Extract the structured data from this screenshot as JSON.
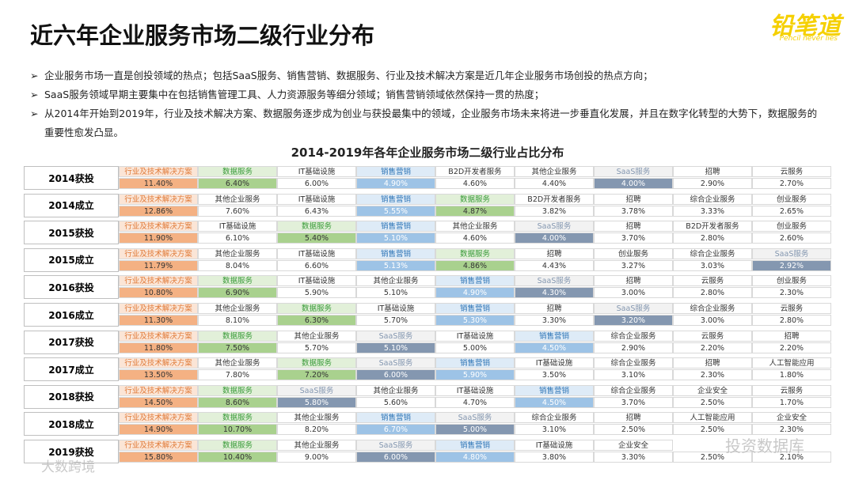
{
  "header": {
    "title": "近六年企业服务市场二级行业分布",
    "logo": "铅笔道",
    "logo_sub": "Pencil never lies"
  },
  "bullets": [
    "企业服务市场一直是创投领域的热点；包括SaaS服务、销售营销、数据服务、行业及技术解决方案是近几年企业服务市场创投的热点方向；",
    "SaaS服务领域早期主要集中在包括销售管理工具、人力资源服务等细分领域；销售营销领域依然保持一贯的热度；",
    "从2014年开始到2019年，行业及技术解决方案、数据服务逐步成为创业与获投最集中的领域，企业服务市场未来将进一步垂直化发展，并且在数字化转型的大势下，数据服务的重要性愈发凸显。"
  ],
  "table": {
    "title": "2014-2019年各年企业服务市场二级行业占比分布",
    "styles": {
      "行业及技术解决方案": {
        "text": "#e07b39",
        "bg": "#fbe5d6",
        "fill": "#f4b183",
        "vtext": "#333"
      },
      "数据服务": {
        "text": "#3a9b3a",
        "bg": "#e2f0d9",
        "fill": "#a9d18e",
        "vtext": "#333"
      },
      "销售营销": {
        "text": "#2e75b6",
        "bg": "#deebf7",
        "fill": "#9dc3e6",
        "vtext": "#fff"
      },
      "SaaS服务": {
        "text": "#8497b0",
        "bg": "#f2f2f2",
        "fill": "#8497b0",
        "vtext": "#fff"
      }
    },
    "rows": [
      {
        "label": "2014获投",
        "cells": [
          {
            "label": "行业及技术解决方案",
            "value": "11.40%"
          },
          {
            "label": "数据服务",
            "value": "6.40%"
          },
          {
            "label": "IT基础设施",
            "value": "6.00%"
          },
          {
            "label": "销售营销",
            "value": "4.90%"
          },
          {
            "label": "B2D开发者服务",
            "value": "4.60%"
          },
          {
            "label": "其他企业服务",
            "value": "4.40%"
          },
          {
            "label": "SaaS服务",
            "value": "4.00%"
          },
          {
            "label": "招聘",
            "value": "2.90%"
          },
          {
            "label": "云服务",
            "value": "2.70%"
          }
        ]
      },
      {
        "label": "2014成立",
        "cells": [
          {
            "label": "行业及技术解决方案",
            "value": "12.86%"
          },
          {
            "label": "其他企业服务",
            "value": "7.60%"
          },
          {
            "label": "IT基础设施",
            "value": "6.43%"
          },
          {
            "label": "销售营销",
            "value": "5.55%"
          },
          {
            "label": "数据服务",
            "value": "4.87%"
          },
          {
            "label": "B2D开发者服务",
            "value": "3.82%"
          },
          {
            "label": "招聘",
            "value": "3.78%"
          },
          {
            "label": "综合企业服务",
            "value": "3.33%"
          },
          {
            "label": "创业服务",
            "value": "2.65%"
          }
        ]
      },
      {
        "label": "2015获投",
        "cells": [
          {
            "label": "行业及技术解决方案",
            "value": "11.90%"
          },
          {
            "label": "IT基础设施",
            "value": "6.10%"
          },
          {
            "label": "数据服务",
            "value": "5.40%"
          },
          {
            "label": "销售营销",
            "value": "5.10%"
          },
          {
            "label": "其他企业服务",
            "value": "4.60%"
          },
          {
            "label": "SaaS服务",
            "value": "4.00%"
          },
          {
            "label": "招聘",
            "value": "3.70%"
          },
          {
            "label": "B2D开发者服务",
            "value": "2.80%"
          },
          {
            "label": "创业服务",
            "value": "2.60%"
          }
        ]
      },
      {
        "label": "2015成立",
        "cells": [
          {
            "label": "行业及技术解决方案",
            "value": "11.79%"
          },
          {
            "label": "其他企业服务",
            "value": "8.04%"
          },
          {
            "label": "IT基础设施",
            "value": "6.60%"
          },
          {
            "label": "销售营销",
            "value": "5.13%"
          },
          {
            "label": "数据服务",
            "value": "4.86%"
          },
          {
            "label": "招聘",
            "value": "4.43%"
          },
          {
            "label": "创业服务",
            "value": "3.27%"
          },
          {
            "label": "综合企业服务",
            "value": "3.03%"
          },
          {
            "label": "SaaS服务",
            "value": "2.92%"
          }
        ]
      },
      {
        "label": "2016获投",
        "cells": [
          {
            "label": "行业及技术解决方案",
            "value": "10.80%"
          },
          {
            "label": "数据服务",
            "value": "6.90%"
          },
          {
            "label": "IT基础设施",
            "value": "5.90%"
          },
          {
            "label": "其他企业服务",
            "value": "5.10%"
          },
          {
            "label": "销售营销",
            "value": "4.90%"
          },
          {
            "label": "SaaS服务",
            "value": "4.30%"
          },
          {
            "label": "招聘",
            "value": "3.00%"
          },
          {
            "label": "云服务",
            "value": "2.80%"
          },
          {
            "label": "创业服务",
            "value": "2.30%"
          }
        ]
      },
      {
        "label": "2016成立",
        "cells": [
          {
            "label": "行业及技术解决方案",
            "value": "11.30%"
          },
          {
            "label": "其他企业服务",
            "value": "8.10%"
          },
          {
            "label": "数据服务",
            "value": "6.30%"
          },
          {
            "label": "IT基础设施",
            "value": "5.70%"
          },
          {
            "label": "销售营销",
            "value": "5.30%"
          },
          {
            "label": "招聘",
            "value": "3.30%"
          },
          {
            "label": "SaaS服务",
            "value": "3.20%"
          },
          {
            "label": "综合企业服务",
            "value": "3.00%"
          },
          {
            "label": "云服务",
            "value": "2.80%"
          }
        ]
      },
      {
        "label": "2017获投",
        "cells": [
          {
            "label": "行业及技术解决方案",
            "value": "11.80%"
          },
          {
            "label": "数据服务",
            "value": "7.50%"
          },
          {
            "label": "其他企业服务",
            "value": "5.70%"
          },
          {
            "label": "SaaS服务",
            "value": "5.10%"
          },
          {
            "label": "IT基础设施",
            "value": "5.00%"
          },
          {
            "label": "销售营销",
            "value": "4.50%"
          },
          {
            "label": "综合企业服务",
            "value": "2.90%"
          },
          {
            "label": "云服务",
            "value": "2.20%"
          },
          {
            "label": "招聘",
            "value": "2.20%"
          }
        ]
      },
      {
        "label": "2017成立",
        "cells": [
          {
            "label": "行业及技术解决方案",
            "value": "13.50%"
          },
          {
            "label": "其他企业服务",
            "value": "7.80%"
          },
          {
            "label": "数据服务",
            "value": "7.20%"
          },
          {
            "label": "SaaS服务",
            "value": "6.00%"
          },
          {
            "label": "销售营销",
            "value": "5.90%"
          },
          {
            "label": "IT基础设施",
            "value": "3.50%"
          },
          {
            "label": "综合企业服务",
            "value": "3.10%"
          },
          {
            "label": "招聘",
            "value": "2.30%"
          },
          {
            "label": "人工智能应用",
            "value": "1.80%"
          }
        ]
      },
      {
        "label": "2018获投",
        "cells": [
          {
            "label": "行业及技术解决方案",
            "value": "14.50%"
          },
          {
            "label": "数据服务",
            "value": "8.60%"
          },
          {
            "label": "SaaS服务",
            "value": "5.80%"
          },
          {
            "label": "其他企业服务",
            "value": "5.60%"
          },
          {
            "label": "IT基础设施",
            "value": "4.70%"
          },
          {
            "label": "销售营销",
            "value": "4.50%"
          },
          {
            "label": "综合企业服务",
            "value": "3.70%"
          },
          {
            "label": "企业安全",
            "value": "2.50%"
          },
          {
            "label": "云服务",
            "value": "1.70%"
          }
        ]
      },
      {
        "label": "2018成立",
        "cells": [
          {
            "label": "行业及技术解决方案",
            "value": "14.90%"
          },
          {
            "label": "数据服务",
            "value": "10.70%"
          },
          {
            "label": "其他企业服务",
            "value": "8.20%"
          },
          {
            "label": "销售营销",
            "value": "6.70%"
          },
          {
            "label": "SaaS服务",
            "value": "5.00%"
          },
          {
            "label": "综合企业服务",
            "value": "3.10%"
          },
          {
            "label": "招聘",
            "value": "2.50%"
          },
          {
            "label": "人工智能应用",
            "value": "2.50%"
          },
          {
            "label": "企业安全",
            "value": "2.30%"
          }
        ]
      },
      {
        "label": "2019获投",
        "cells": [
          {
            "label": "行业及技术解决方案",
            "value": "15.80%"
          },
          {
            "label": "数据服务",
            "value": "10.40%"
          },
          {
            "label": "其他企业服务",
            "value": "9.00%"
          },
          {
            "label": "SaaS服务",
            "value": "6.00%"
          },
          {
            "label": "销售营销",
            "value": "4.80%"
          },
          {
            "label": "IT基础设施",
            "value": "3.80%"
          },
          {
            "label": "企业安全",
            "value": "3.30%"
          },
          {
            "label": null,
            "value": "2.50%"
          },
          {
            "label": null,
            "value": "2.10%"
          }
        ]
      }
    ]
  },
  "watermarks": [
    "投资数据库",
    "大数跨境"
  ]
}
